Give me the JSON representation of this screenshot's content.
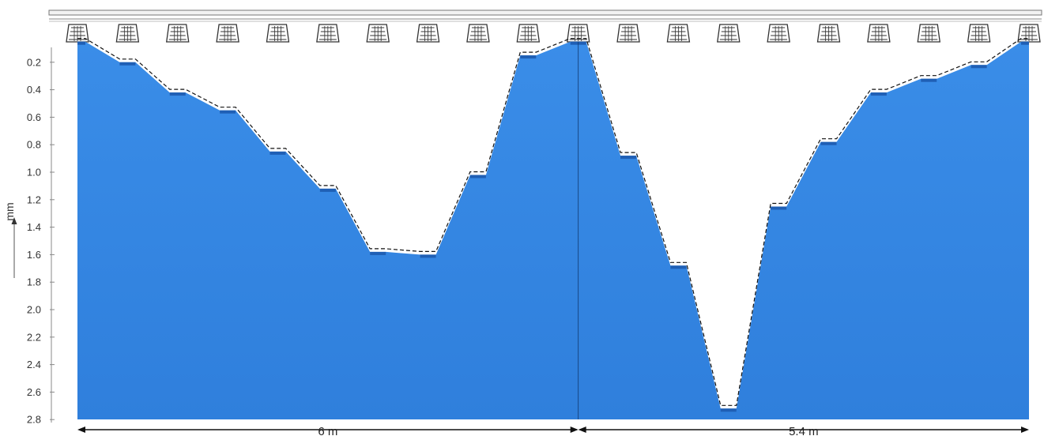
{
  "chart_data": {
    "type": "area",
    "title": "",
    "xlabel": "",
    "ylabel": "mm",
    "y_axis_inverted": true,
    "ylim": [
      0,
      2.8
    ],
    "yticks": [
      "0.2",
      "0.4",
      "0.6",
      "0.8",
      "1.0",
      "1.2",
      "1.4",
      "1.6",
      "1.8",
      "2.0",
      "2.2",
      "2.4",
      "2.6",
      "2.8"
    ],
    "grid": false,
    "legend": "none",
    "fill_color": "#3a8de8",
    "outline_color": "#111111",
    "sections": [
      {
        "label": "6 m",
        "length_m": 6.0
      },
      {
        "label": "5.4 m",
        "length_m": 5.4
      }
    ],
    "series": [
      {
        "values": [
          0.05,
          0.2,
          0.42,
          0.55,
          0.85,
          1.12,
          1.58,
          1.6,
          1.02,
          0.15,
          0.05,
          0.88,
          1.68,
          2.72,
          1.25,
          0.78,
          0.42,
          0.32,
          0.22,
          0.05
        ]
      }
    ],
    "support_count": 20
  }
}
